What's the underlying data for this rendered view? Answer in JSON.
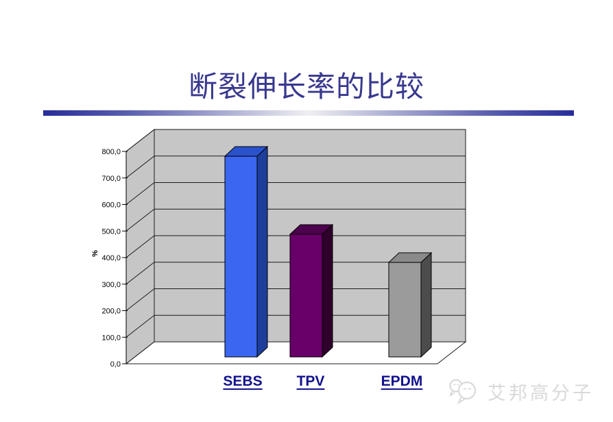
{
  "slide": {
    "title": "断裂伸长率的比较"
  },
  "chart_data": {
    "type": "bar",
    "style": "3d-column",
    "title": "断裂伸长率的比较",
    "categories": [
      "SEBS",
      "TPV",
      "EPDM"
    ],
    "values": [
      756,
      462,
      356
    ],
    "xlabel": "",
    "ylabel": "%",
    "ylim": [
      0,
      800
    ],
    "ytick_interval": 100,
    "ytick_labels": [
      "0,0",
      "100,0",
      "200,0",
      "300,0",
      "400,0",
      "500,0",
      "600,0",
      "700,0",
      "800,0"
    ],
    "grid": true,
    "legend": "none",
    "wall_color": "#c6c6c6",
    "floor_color": "#ffffff",
    "bar_styles": [
      {
        "name": "SEBS",
        "front": "#3a66f0",
        "top": "#2a52cc",
        "side": "#1d3e9b"
      },
      {
        "name": "TPV",
        "front": "#690069",
        "top": "#4d004d",
        "side": "#2e002b"
      },
      {
        "name": "EPDM",
        "front": "#9b9b9b",
        "top": "#8a8a8a",
        "side": "#4c4c4c"
      }
    ]
  },
  "divider": {
    "edge_color": "#272c9b",
    "center_color": "#f0f0f2"
  },
  "watermark": {
    "text": "艾邦高分子",
    "icon": "wechat-bubbles-icon",
    "color": "#d9d9d9"
  },
  "colors": {
    "title": "#38388f",
    "category_label": "#12128e",
    "tick_label": "#000000"
  }
}
